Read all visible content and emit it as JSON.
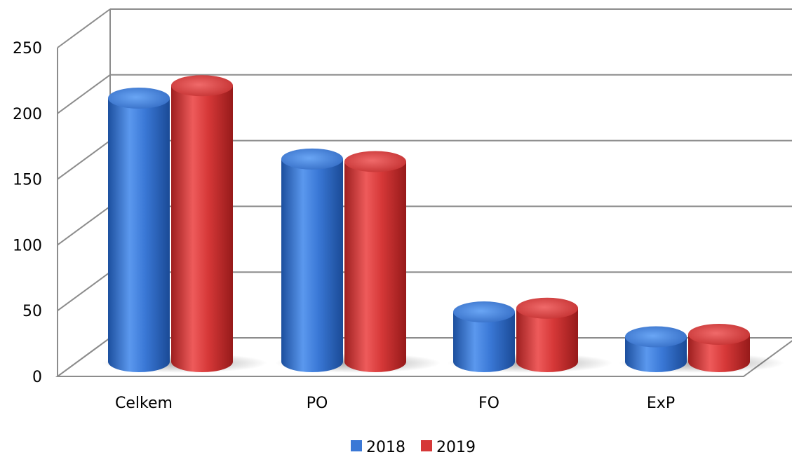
{
  "chart_data": {
    "type": "bar",
    "style": "3d-cylinder",
    "categories": [
      "Celkem",
      "PO",
      "FO",
      "ExP"
    ],
    "series": [
      {
        "name": "2018",
        "values": [
          212,
          163,
          40,
          20
        ]
      },
      {
        "name": "2019",
        "values": [
          222,
          161,
          43,
          22
        ]
      }
    ],
    "ylim": [
      0,
      250
    ],
    "yticks": [
      "0",
      "50",
      "100",
      "150",
      "200",
      "250"
    ],
    "grid": true,
    "legend_position": "bottom",
    "colors": {
      "2018": "#3a78d6",
      "2019": "#d63838"
    }
  }
}
